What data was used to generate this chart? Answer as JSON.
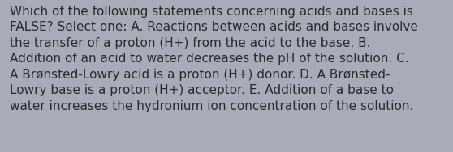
{
  "background_color": "#a8acb8",
  "text_color": "#2a2a2a",
  "font_size": 11.0,
  "fig_width": 5.58,
  "fig_height": 1.88,
  "dpi": 100,
  "wrapped_text": "Which of the following statements concerning acids and bases is\nFALSE? Select one: A. Reactions between acids and bases involve\nthe transfer of a proton (H+) from the acid to the base. B.\nAddition of an acid to water decreases the pH of the solution. C.\nA Brønsted-Lowry acid is a proton (H+) donor. D. A Brønsted-\nLowry base is a proton (H+) acceptor. E. Addition of a base to\nwater increases the hydronium ion concentration of the solution."
}
